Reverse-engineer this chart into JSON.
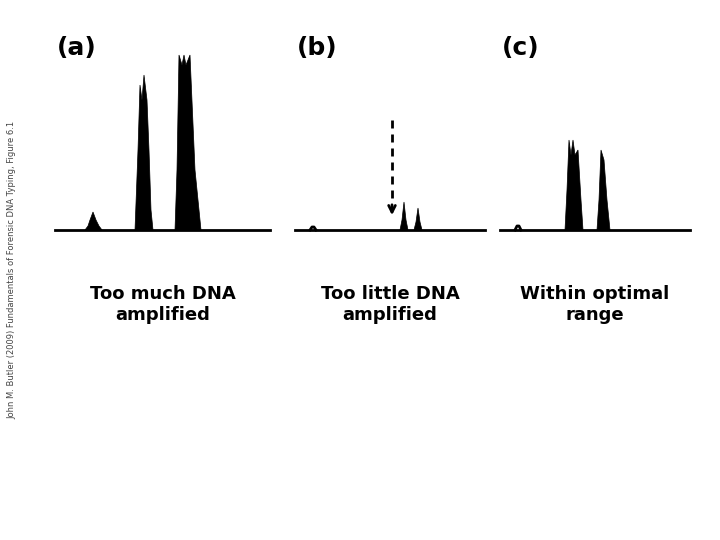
{
  "bg_color": "#ffffff",
  "panel_color": "#000000",
  "label_a": "(a)",
  "label_b": "(b)",
  "label_c": "(c)",
  "caption_a": "Too much DNA\namplified",
  "caption_b": "Too little DNA\namplified",
  "caption_c": "Within optimal\nrange",
  "watermark": "John M. Butler (2009) Fundamentals of Forensic DNA Typing, Figure 6.1",
  "fig_width": 7.2,
  "fig_height": 5.4,
  "dpi": 100
}
